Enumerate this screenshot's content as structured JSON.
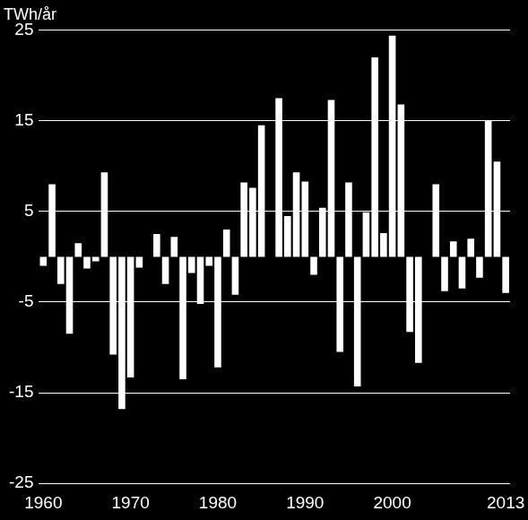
{
  "chart_data": {
    "type": "bar",
    "y_label": "TWh/år",
    "categories": [
      "1960",
      null,
      null,
      null,
      null,
      null,
      null,
      null,
      null,
      null,
      "1970",
      null,
      null,
      null,
      null,
      null,
      null,
      null,
      null,
      null,
      "1980",
      null,
      null,
      null,
      null,
      null,
      null,
      null,
      null,
      null,
      "1990",
      null,
      null,
      null,
      null,
      null,
      null,
      null,
      null,
      null,
      "2000",
      null,
      null,
      null,
      null,
      null,
      null,
      null,
      null,
      null,
      null,
      null,
      null,
      "2013"
    ],
    "values": [
      -1,
      8,
      -3,
      -8.5,
      1.5,
      -1.3,
      -0.5,
      9.3,
      -10.8,
      -16.8,
      -13.3,
      -1.2,
      0,
      2.5,
      -3,
      2.2,
      -13.5,
      -1.8,
      -5.2,
      -1,
      -12.2,
      3,
      -4.2,
      8.2,
      7.6,
      14.5,
      0,
      17.5,
      4.5,
      9.3,
      8.3,
      -2,
      5.4,
      17.3,
      -10.5,
      8.2,
      -14.3,
      4.9,
      22,
      2.6,
      24.4,
      16.8,
      -8.3,
      -11.7,
      0,
      8,
      -3.8,
      1.7,
      -3.5,
      2,
      -2.3,
      15,
      10.5,
      -4
    ],
    "color": "#ffffff",
    "ylim": [
      -25,
      25
    ],
    "yticks": [
      -25,
      -15,
      -5,
      5,
      15,
      25
    ],
    "grid": true
  }
}
